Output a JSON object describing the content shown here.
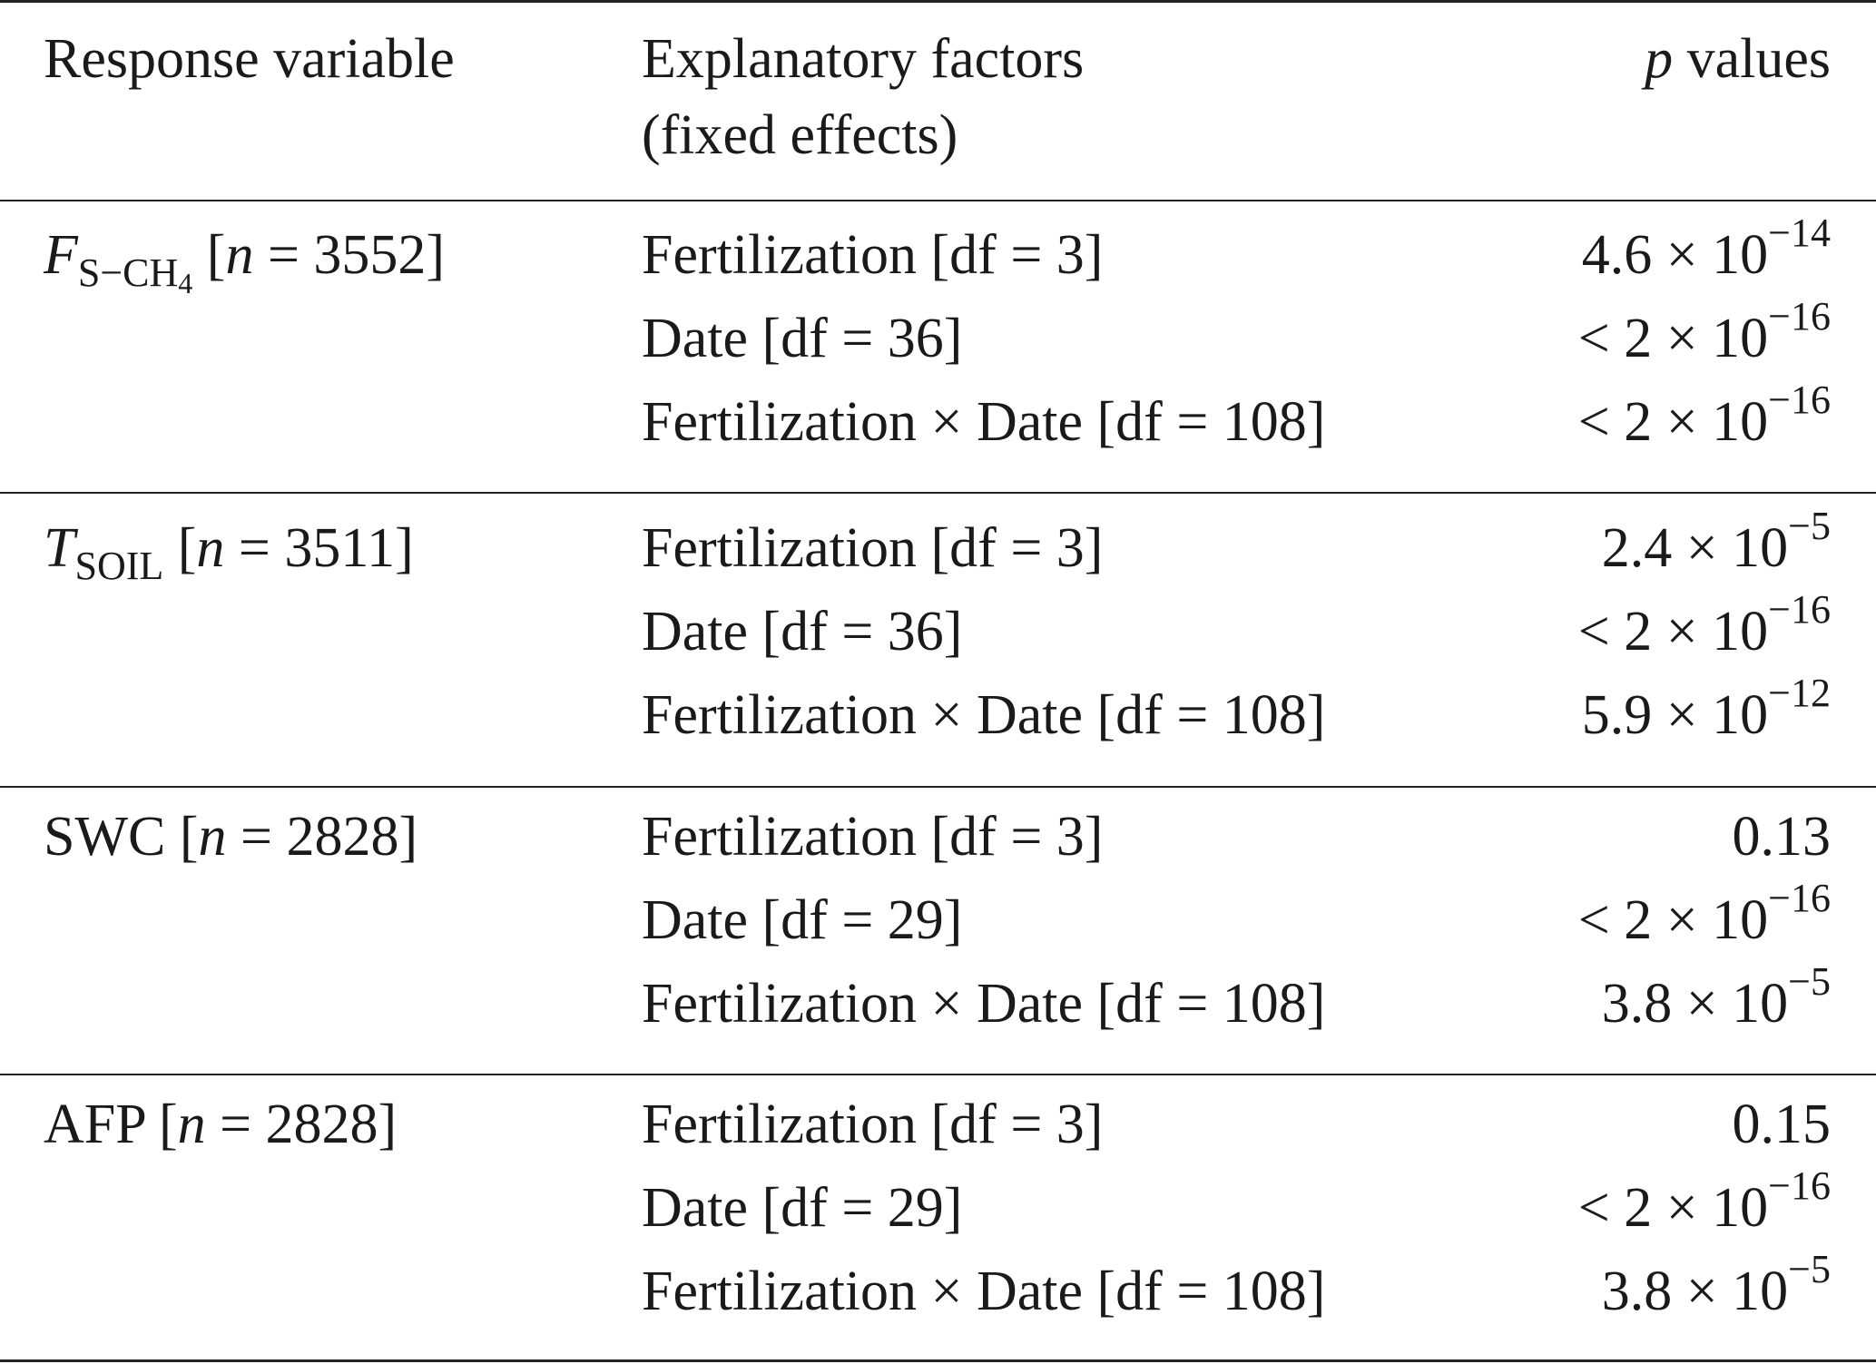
{
  "header": {
    "col1": "Response variable",
    "col2_line1": "Explanatory factors",
    "col2_line2": "(fixed effects)",
    "col3_var": "p",
    "col3_rest": " values"
  },
  "groups": [
    {
      "response_symbol": "F",
      "response_sub": "S−CH",
      "response_sub2": "4",
      "response_n": " [n = 3552]",
      "rows": [
        {
          "factor": "Fertilization [df = 3]",
          "p_mant": "4.6 × 10",
          "p_exp": "−14",
          "p_prefix": ""
        },
        {
          "factor": "Date [df = 36]",
          "p_mant": "2 × 10",
          "p_exp": "−16",
          "p_prefix": "< "
        },
        {
          "factor": "Fertilization × Date [df = 108]",
          "p_mant": "2 × 10",
          "p_exp": "−16",
          "p_prefix": "< "
        }
      ]
    },
    {
      "response_symbol": "T",
      "response_sub": "SOIL",
      "response_sub2": "",
      "response_n": " [n = 3511]",
      "rows": [
        {
          "factor": "Fertilization [df = 3]",
          "p_mant": "2.4 × 10",
          "p_exp": "−5",
          "p_prefix": ""
        },
        {
          "factor": "Date [df = 36]",
          "p_mant": "2 × 10",
          "p_exp": "−16",
          "p_prefix": "< "
        },
        {
          "factor": "Fertilization × Date [df = 108]",
          "p_mant": "5.9 × 10",
          "p_exp": "−12",
          "p_prefix": ""
        }
      ]
    },
    {
      "response_symbol": "SWC",
      "response_sub": "",
      "response_sub2": "",
      "response_n": " [n = 2828]",
      "rows": [
        {
          "factor": "Fertilization [df = 3]",
          "p_mant": "0.13",
          "p_exp": "",
          "p_prefix": ""
        },
        {
          "factor": "Date [df = 29]",
          "p_mant": "2 × 10",
          "p_exp": "−16",
          "p_prefix": "< "
        },
        {
          "factor": "Fertilization × Date [df = 108]",
          "p_mant": "3.8 × 10",
          "p_exp": "−5",
          "p_prefix": ""
        }
      ]
    },
    {
      "response_symbol": "AFP",
      "response_sub": "",
      "response_sub2": "",
      "response_n": " [n = 2828]",
      "rows": [
        {
          "factor": "Fertilization [df = 3]",
          "p_mant": "0.15",
          "p_exp": "",
          "p_prefix": ""
        },
        {
          "factor": "Date [df = 29]",
          "p_mant": "2 × 10",
          "p_exp": "−16",
          "p_prefix": "< "
        },
        {
          "factor": "Fertilization × Date [df = 108]",
          "p_mant": "3.8 × 10",
          "p_exp": "−5",
          "p_prefix": ""
        }
      ]
    }
  ]
}
